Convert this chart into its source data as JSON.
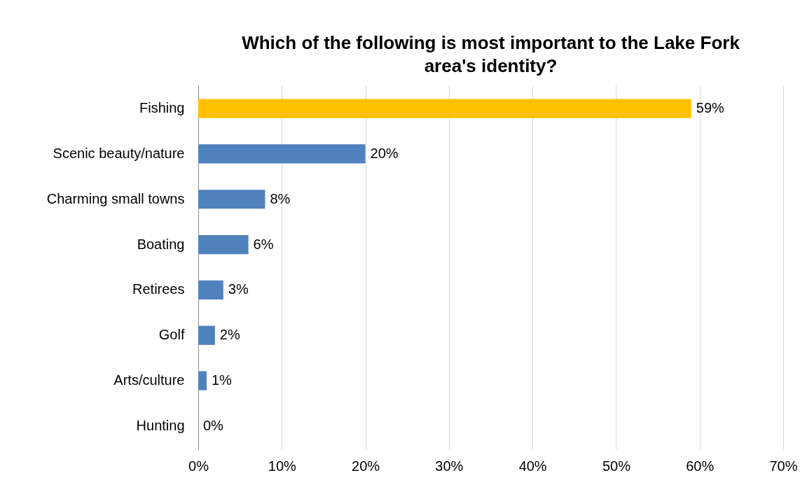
{
  "chart_data": {
    "type": "bar",
    "orientation": "horizontal",
    "title": "Which of the following is most important to the Lake Fork area's identity?",
    "categories": [
      "Fishing",
      "Scenic beauty/nature",
      "Charming small towns",
      "Boating",
      "Retirees",
      "Golf",
      "Arts/culture",
      "Hunting"
    ],
    "values": [
      59,
      20,
      8,
      6,
      3,
      2,
      1,
      0
    ],
    "colors": [
      "#ffc000",
      "#4f81bd",
      "#4f81bd",
      "#4f81bd",
      "#4f81bd",
      "#4f81bd",
      "#4f81bd",
      "#4f81bd"
    ],
    "value_labels": [
      "59%",
      "20%",
      "8%",
      "6%",
      "3%",
      "2%",
      "1%",
      "0%"
    ],
    "xlim": [
      0,
      70
    ],
    "xticks": [
      {
        "value": 0,
        "label": "0%"
      },
      {
        "value": 10,
        "label": "10%"
      },
      {
        "value": 20,
        "label": "20%"
      },
      {
        "value": 30,
        "label": "30%"
      },
      {
        "value": 40,
        "label": "40%"
      },
      {
        "value": 50,
        "label": "50%"
      },
      {
        "value": 60,
        "label": "60%"
      },
      {
        "value": 70,
        "label": "70%"
      }
    ],
    "grid": "x"
  }
}
